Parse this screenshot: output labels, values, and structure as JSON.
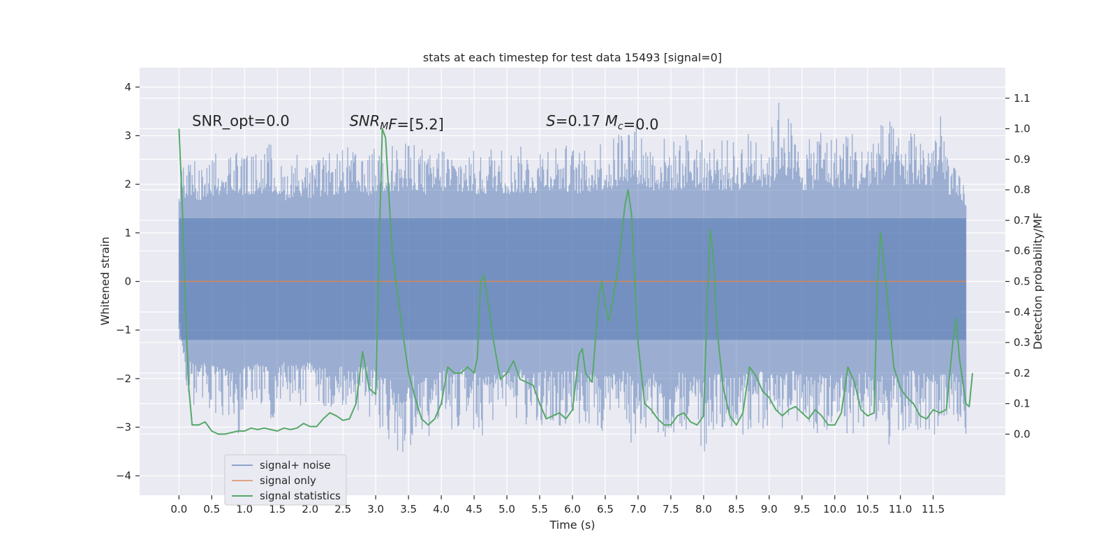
{
  "chart_data": {
    "type": "line",
    "title": "stats at each timestep for test data 15493 [signal=0]",
    "xlabel": "Time (s)",
    "ylabel_left": "Whitened strain",
    "ylabel_right": "Detection probability/MF",
    "xlim": [
      -0.6,
      12.6
    ],
    "ylim_left": [
      -4.4,
      4.4
    ],
    "ylim_right": [
      -0.2,
      1.2
    ],
    "x_ticks": [
      0.0,
      0.5,
      1.0,
      1.5,
      2.0,
      2.5,
      3.0,
      3.5,
      4.0,
      4.5,
      5.0,
      5.5,
      6.0,
      6.5,
      7.0,
      7.5,
      8.0,
      8.5,
      9.0,
      9.5,
      10.0,
      10.5,
      11.0,
      11.5
    ],
    "x_tick_labels": [
      "0.0",
      "0.5",
      "1.0",
      "1.5",
      "2.0",
      "2.5",
      "3.0",
      "3.5",
      "4.0",
      "4.5",
      "5.0",
      "5.5",
      "6.0",
      "6.5",
      "7.0",
      "7.5",
      "8.0",
      "8.5",
      "9.0",
      "9.5",
      "10.0",
      "10.5",
      "11.0",
      "11.5"
    ],
    "y_left_ticks": [
      4,
      3,
      2,
      1,
      0,
      -1,
      -2,
      -3,
      -4
    ],
    "y_left_tick_labels": [
      "4",
      "3",
      "2",
      "1",
      "0",
      "−1",
      "−2",
      "−3",
      "−4"
    ],
    "y_right_ticks": [
      1.1,
      1.0,
      0.9,
      0.8,
      0.7,
      0.6,
      0.5,
      0.4,
      0.3,
      0.2,
      0.1,
      0.0
    ],
    "y_right_tick_labels": [
      "1.1",
      "1.0",
      "0.9",
      "0.8",
      "0.7",
      "0.6",
      "0.5",
      "0.4",
      "0.3",
      "0.2",
      "0.1",
      "0.0"
    ],
    "grid": true,
    "legend_position": "lower-left",
    "annotations": [
      {
        "x": 0.2,
        "y": 3.2,
        "parts": [
          {
            "text": "SNR_opt=0.0"
          }
        ]
      },
      {
        "x": 2.6,
        "y": 3.2,
        "parts": [
          {
            "text": "SNR",
            "italic": true
          },
          {
            "text": "M",
            "italic": true,
            "sub": true
          },
          {
            "text": "F",
            "italic": true
          },
          {
            "text": "=[5.2]"
          }
        ]
      },
      {
        "x": 5.6,
        "y": 3.2,
        "parts": [
          {
            "text": "S",
            "italic": true
          },
          {
            "text": "=0.17   "
          },
          {
            "text": "M",
            "italic": true
          },
          {
            "text": "c",
            "italic": true,
            "sub": true
          },
          {
            "text": "=0.0"
          }
        ]
      }
    ],
    "series": [
      {
        "name": "signal+ noise",
        "color": "#4c72b0",
        "axis": "left",
        "x_range": [
          0.0,
          12.0
        ],
        "envelope_upper": [
          [
            0.0,
            2.2
          ],
          [
            0.1,
            2.5
          ],
          [
            0.2,
            2.6
          ],
          [
            0.3,
            2.3
          ],
          [
            0.5,
            2.6
          ],
          [
            0.7,
            2.7
          ],
          [
            0.9,
            2.8
          ],
          [
            1.0,
            2.6
          ],
          [
            1.2,
            2.7
          ],
          [
            1.4,
            2.9
          ],
          [
            1.6,
            2.3
          ],
          [
            1.8,
            2.7
          ],
          [
            2.0,
            2.4
          ],
          [
            2.2,
            2.6
          ],
          [
            2.4,
            2.7
          ],
          [
            2.6,
            2.8
          ],
          [
            2.8,
            2.5
          ],
          [
            3.0,
            2.8
          ],
          [
            3.2,
            2.9
          ],
          [
            3.4,
            2.8
          ],
          [
            3.6,
            3.0
          ],
          [
            3.8,
            2.6
          ],
          [
            4.0,
            2.9
          ],
          [
            4.2,
            2.7
          ],
          [
            4.4,
            2.8
          ],
          [
            4.6,
            2.6
          ],
          [
            4.8,
            2.9
          ],
          [
            5.0,
            2.7
          ],
          [
            5.2,
            2.8
          ],
          [
            5.4,
            2.7
          ],
          [
            5.6,
            3.0
          ],
          [
            5.8,
            2.9
          ],
          [
            6.0,
            2.8
          ],
          [
            6.2,
            2.7
          ],
          [
            6.4,
            3.0
          ],
          [
            6.6,
            2.9
          ],
          [
            6.8,
            3.5
          ],
          [
            7.0,
            3.3
          ],
          [
            7.2,
            2.9
          ],
          [
            7.4,
            3.0
          ],
          [
            7.6,
            2.9
          ],
          [
            7.8,
            3.2
          ],
          [
            8.0,
            2.9
          ],
          [
            8.2,
            3.0
          ],
          [
            8.4,
            2.9
          ],
          [
            8.6,
            3.0
          ],
          [
            8.8,
            3.3
          ],
          [
            9.0,
            3.0
          ],
          [
            9.2,
            4.1
          ],
          [
            9.4,
            3.0
          ],
          [
            9.6,
            2.9
          ],
          [
            9.8,
            3.3
          ],
          [
            10.0,
            3.0
          ],
          [
            10.2,
            3.3
          ],
          [
            10.4,
            2.8
          ],
          [
            10.6,
            3.2
          ],
          [
            10.8,
            3.4
          ],
          [
            11.0,
            3.0
          ],
          [
            11.2,
            3.3
          ],
          [
            11.4,
            3.0
          ],
          [
            11.6,
            3.5
          ],
          [
            11.8,
            2.4
          ],
          [
            12.0,
            2.0
          ]
        ],
        "envelope_lower": [
          [
            0.0,
            -0.6
          ],
          [
            0.1,
            -2.2
          ],
          [
            0.2,
            -2.6
          ],
          [
            0.3,
            -2.5
          ],
          [
            0.5,
            -2.7
          ],
          [
            0.7,
            -2.9
          ],
          [
            0.9,
            -3.3
          ],
          [
            1.0,
            -2.8
          ],
          [
            1.2,
            -2.6
          ],
          [
            1.4,
            -2.9
          ],
          [
            1.6,
            -2.5
          ],
          [
            1.8,
            -2.7
          ],
          [
            2.0,
            -2.5
          ],
          [
            2.2,
            -2.8
          ],
          [
            2.4,
            -2.6
          ],
          [
            2.6,
            -3.0
          ],
          [
            2.8,
            -2.7
          ],
          [
            3.0,
            -2.9
          ],
          [
            3.2,
            -3.5
          ],
          [
            3.35,
            -4.0
          ],
          [
            3.6,
            -3.2
          ],
          [
            3.8,
            -3.4
          ],
          [
            4.0,
            -2.9
          ],
          [
            4.2,
            -3.1
          ],
          [
            4.4,
            -2.8
          ],
          [
            4.6,
            -3.4
          ],
          [
            4.8,
            -3.0
          ],
          [
            5.0,
            -3.1
          ],
          [
            5.2,
            -2.9
          ],
          [
            5.4,
            -3.2
          ],
          [
            5.6,
            -3.0
          ],
          [
            5.8,
            -3.1
          ],
          [
            6.0,
            -2.9
          ],
          [
            6.2,
            -3.3
          ],
          [
            6.4,
            -3.1
          ],
          [
            6.6,
            -3.2
          ],
          [
            6.8,
            -3.0
          ],
          [
            7.0,
            -3.7
          ],
          [
            7.2,
            -3.1
          ],
          [
            7.4,
            -3.5
          ],
          [
            7.6,
            -3.0
          ],
          [
            7.8,
            -3.2
          ],
          [
            8.0,
            -3.7
          ],
          [
            8.2,
            -3.1
          ],
          [
            8.4,
            -3.0
          ],
          [
            8.6,
            -3.2
          ],
          [
            8.8,
            -3.1
          ],
          [
            9.0,
            -3.0
          ],
          [
            9.2,
            -3.2
          ],
          [
            9.4,
            -3.0
          ],
          [
            9.6,
            -3.1
          ],
          [
            9.8,
            -3.2
          ],
          [
            10.0,
            -3.0
          ],
          [
            10.2,
            -3.3
          ],
          [
            10.4,
            -3.1
          ],
          [
            10.6,
            -3.2
          ],
          [
            10.8,
            -3.4
          ],
          [
            11.0,
            -3.1
          ],
          [
            11.2,
            -3.0
          ],
          [
            11.4,
            -3.2
          ],
          [
            11.6,
            -3.3
          ],
          [
            11.8,
            -3.0
          ],
          [
            12.0,
            -3.6
          ]
        ],
        "band": [
          -1.2,
          1.3
        ]
      },
      {
        "name": "signal only",
        "color": "#dd8452",
        "axis": "left",
        "points": [
          [
            0.0,
            0.0
          ],
          [
            12.0,
            0.0
          ]
        ]
      },
      {
        "name": "signal statistics",
        "color": "#55a868",
        "axis": "right",
        "points": [
          [
            0.0,
            1.0
          ],
          [
            0.05,
            0.75
          ],
          [
            0.1,
            0.4
          ],
          [
            0.15,
            0.15
          ],
          [
            0.2,
            0.03
          ],
          [
            0.3,
            0.03
          ],
          [
            0.4,
            0.04
          ],
          [
            0.5,
            0.01
          ],
          [
            0.6,
            0.0
          ],
          [
            0.7,
            0.0
          ],
          [
            0.8,
            0.005
          ],
          [
            0.9,
            0.01
          ],
          [
            1.0,
            0.01
          ],
          [
            1.1,
            0.02
          ],
          [
            1.2,
            0.015
          ],
          [
            1.3,
            0.02
          ],
          [
            1.4,
            0.015
          ],
          [
            1.5,
            0.01
          ],
          [
            1.6,
            0.02
          ],
          [
            1.7,
            0.015
          ],
          [
            1.8,
            0.02
          ],
          [
            1.9,
            0.035
          ],
          [
            2.0,
            0.025
          ],
          [
            2.1,
            0.025
          ],
          [
            2.2,
            0.05
          ],
          [
            2.3,
            0.07
          ],
          [
            2.4,
            0.06
          ],
          [
            2.5,
            0.045
          ],
          [
            2.6,
            0.05
          ],
          [
            2.7,
            0.1
          ],
          [
            2.8,
            0.27
          ],
          [
            2.9,
            0.15
          ],
          [
            3.0,
            0.13
          ],
          [
            3.05,
            0.6
          ],
          [
            3.1,
            1.0
          ],
          [
            3.15,
            0.97
          ],
          [
            3.25,
            0.6
          ],
          [
            3.4,
            0.35
          ],
          [
            3.5,
            0.2
          ],
          [
            3.6,
            0.12
          ],
          [
            3.7,
            0.05
          ],
          [
            3.8,
            0.03
          ],
          [
            3.9,
            0.05
          ],
          [
            4.0,
            0.1
          ],
          [
            4.1,
            0.22
          ],
          [
            4.2,
            0.2
          ],
          [
            4.3,
            0.2
          ],
          [
            4.4,
            0.22
          ],
          [
            4.5,
            0.2
          ],
          [
            4.55,
            0.25
          ],
          [
            4.6,
            0.5
          ],
          [
            4.65,
            0.52
          ],
          [
            4.7,
            0.45
          ],
          [
            4.8,
            0.3
          ],
          [
            4.9,
            0.18
          ],
          [
            5.0,
            0.2
          ],
          [
            5.1,
            0.24
          ],
          [
            5.2,
            0.18
          ],
          [
            5.3,
            0.17
          ],
          [
            5.4,
            0.16
          ],
          [
            5.5,
            0.1
          ],
          [
            5.6,
            0.05
          ],
          [
            5.7,
            0.06
          ],
          [
            5.8,
            0.07
          ],
          [
            5.9,
            0.05
          ],
          [
            6.0,
            0.08
          ],
          [
            6.1,
            0.26
          ],
          [
            6.15,
            0.28
          ],
          [
            6.2,
            0.2
          ],
          [
            6.3,
            0.17
          ],
          [
            6.4,
            0.45
          ],
          [
            6.45,
            0.5
          ],
          [
            6.5,
            0.42
          ],
          [
            6.55,
            0.37
          ],
          [
            6.6,
            0.42
          ],
          [
            6.7,
            0.55
          ],
          [
            6.8,
            0.75
          ],
          [
            6.85,
            0.8
          ],
          [
            6.9,
            0.72
          ],
          [
            7.0,
            0.3
          ],
          [
            7.1,
            0.1
          ],
          [
            7.2,
            0.08
          ],
          [
            7.3,
            0.05
          ],
          [
            7.4,
            0.03
          ],
          [
            7.5,
            0.03
          ],
          [
            7.6,
            0.06
          ],
          [
            7.7,
            0.07
          ],
          [
            7.8,
            0.04
          ],
          [
            7.9,
            0.03
          ],
          [
            8.0,
            0.06
          ],
          [
            8.05,
            0.4
          ],
          [
            8.1,
            0.67
          ],
          [
            8.15,
            0.58
          ],
          [
            8.2,
            0.35
          ],
          [
            8.3,
            0.15
          ],
          [
            8.4,
            0.06
          ],
          [
            8.5,
            0.03
          ],
          [
            8.6,
            0.07
          ],
          [
            8.7,
            0.22
          ],
          [
            8.8,
            0.19
          ],
          [
            8.9,
            0.14
          ],
          [
            9.0,
            0.12
          ],
          [
            9.1,
            0.08
          ],
          [
            9.2,
            0.06
          ],
          [
            9.3,
            0.08
          ],
          [
            9.4,
            0.09
          ],
          [
            9.5,
            0.07
          ],
          [
            9.6,
            0.05
          ],
          [
            9.7,
            0.08
          ],
          [
            9.8,
            0.06
          ],
          [
            9.9,
            0.03
          ],
          [
            10.0,
            0.03
          ],
          [
            10.1,
            0.07
          ],
          [
            10.2,
            0.22
          ],
          [
            10.3,
            0.17
          ],
          [
            10.4,
            0.08
          ],
          [
            10.5,
            0.06
          ],
          [
            10.6,
            0.07
          ],
          [
            10.65,
            0.5
          ],
          [
            10.7,
            0.66
          ],
          [
            10.8,
            0.45
          ],
          [
            10.9,
            0.22
          ],
          [
            11.0,
            0.15
          ],
          [
            11.1,
            0.12
          ],
          [
            11.2,
            0.1
          ],
          [
            11.3,
            0.06
          ],
          [
            11.4,
            0.05
          ],
          [
            11.5,
            0.08
          ],
          [
            11.6,
            0.07
          ],
          [
            11.7,
            0.08
          ],
          [
            11.8,
            0.3
          ],
          [
            11.85,
            0.38
          ],
          [
            11.9,
            0.25
          ],
          [
            12.0,
            0.1
          ],
          [
            12.05,
            0.09
          ],
          [
            12.1,
            0.2
          ]
        ]
      }
    ]
  }
}
